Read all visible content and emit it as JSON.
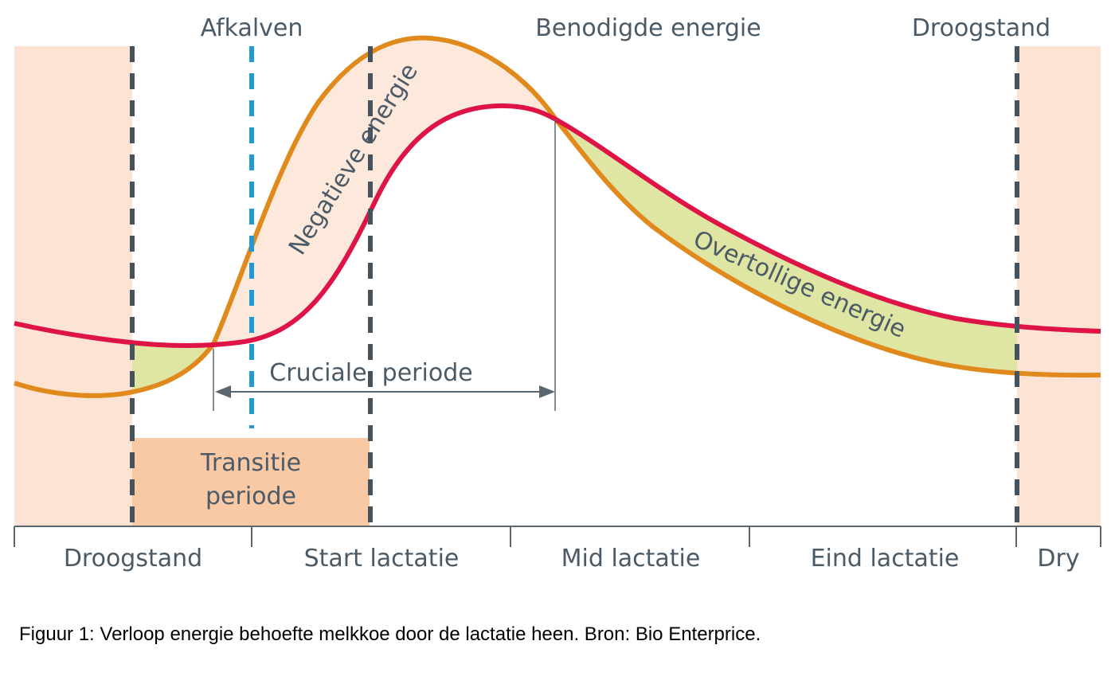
{
  "colors": {
    "dry_fill": "#fde3d3",
    "transition_fill": "#f9c9a6",
    "negative_fill": "#fde9dc",
    "surplus_fill": "#dfe6a4",
    "intake_curve": "#e0891c",
    "need_curve": "#de1346",
    "dashed_dark": "#46525c",
    "dashed_blue": "#1e9ad6",
    "text": "#4a5a66"
  },
  "top_labels": {
    "calving": "Afkalven",
    "needed_energy": "Benodigde energie",
    "dry_off": "Droogstand"
  },
  "regions": {
    "negative_energy": "Negatieve energie",
    "surplus_energy": "Overtollige energie",
    "crucial_period": "Cruciale  periode",
    "transition_line1": "Transitie",
    "transition_line2": "periode"
  },
  "phases": [
    "Droogstand",
    "Start lactatie",
    "Mid lactatie",
    "Eind lactatie",
    "Dry"
  ],
  "caption": "Figuur 1: Verloop energie behoefte melkkoe door de lactatie heen. Bron: Bio Enterprice."
}
